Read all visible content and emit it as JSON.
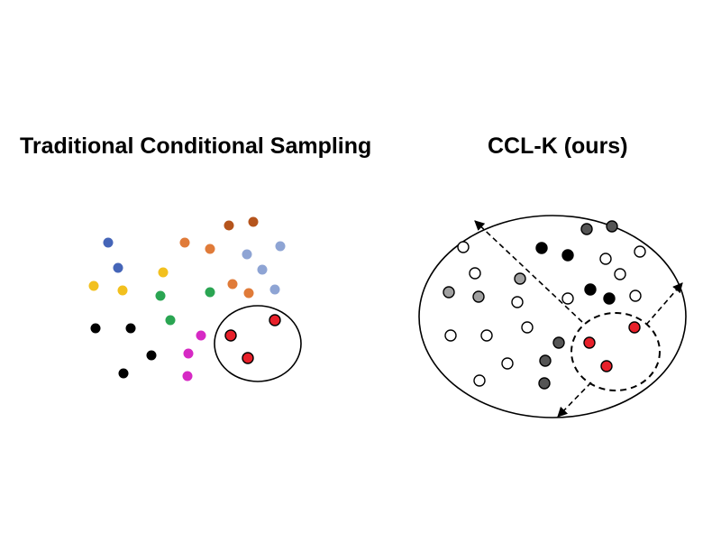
{
  "panels": {
    "left": {
      "title": "Traditional Conditional Sampling"
    },
    "right": {
      "title": "CCL-K (ours)"
    }
  },
  "colors": {
    "blue": "#4565b8",
    "light_blue": "#8ea4d4",
    "yellow": "#f2c01e",
    "orange": "#e07b39",
    "brown": "#b5541c",
    "green": "#2aa552",
    "black": "#000000",
    "magenta": "#d629c4",
    "red": "#e8202a",
    "dark_gray": "#555555",
    "gray": "#a0a0a0",
    "light_gray": "#e6e6e6",
    "white": "#ffffff"
  }
}
